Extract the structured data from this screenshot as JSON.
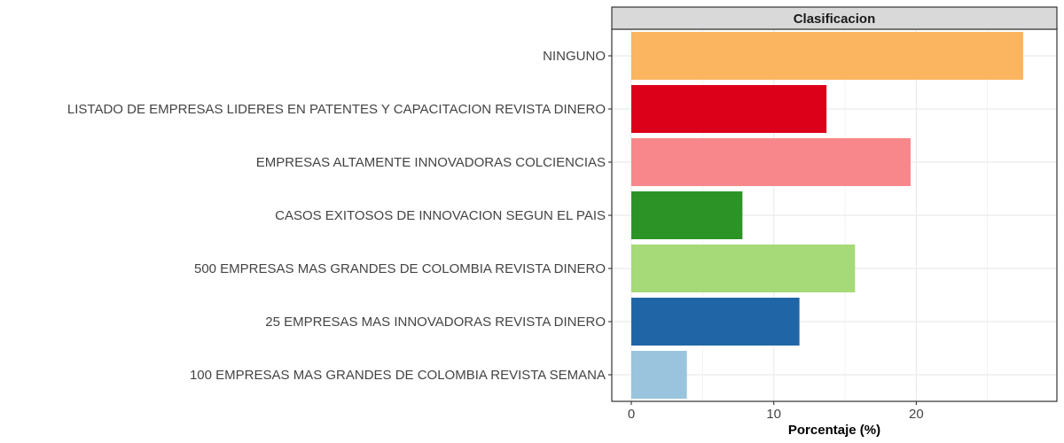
{
  "chart_data": {
    "type": "bar",
    "orientation": "horizontal",
    "facet_title": "Clasificacion",
    "xlabel": "Porcentaje (%)",
    "ylabel": "",
    "xlim": [
      0,
      28.5
    ],
    "x_ticks": [
      0,
      10,
      20
    ],
    "grid": true,
    "legend": "none",
    "categories": [
      "100 EMPRESAS MAS GRANDES DE COLOMBIA REVISTA SEMANA",
      "25 EMPRESAS MAS INNOVADORAS REVISTA DINERO",
      "500 EMPRESAS MAS GRANDES DE COLOMBIA REVISTA DINERO",
      "CASOS EXITOSOS DE INNOVACION SEGUN EL PAIS",
      "EMPRESAS ALTAMENTE INNOVADORAS COLCIENCIAS",
      "LISTADO DE EMPRESAS LIDERES EN PATENTES Y CAPACITACION REVISTA DINERO",
      "NINGUNO"
    ],
    "values": [
      3.9,
      11.8,
      15.7,
      7.8,
      19.6,
      13.7,
      27.5
    ],
    "colors": [
      "#9ac4dd",
      "#2066a7",
      "#a6da78",
      "#2c9427",
      "#f8878b",
      "#dc0019",
      "#fbb45f"
    ]
  }
}
